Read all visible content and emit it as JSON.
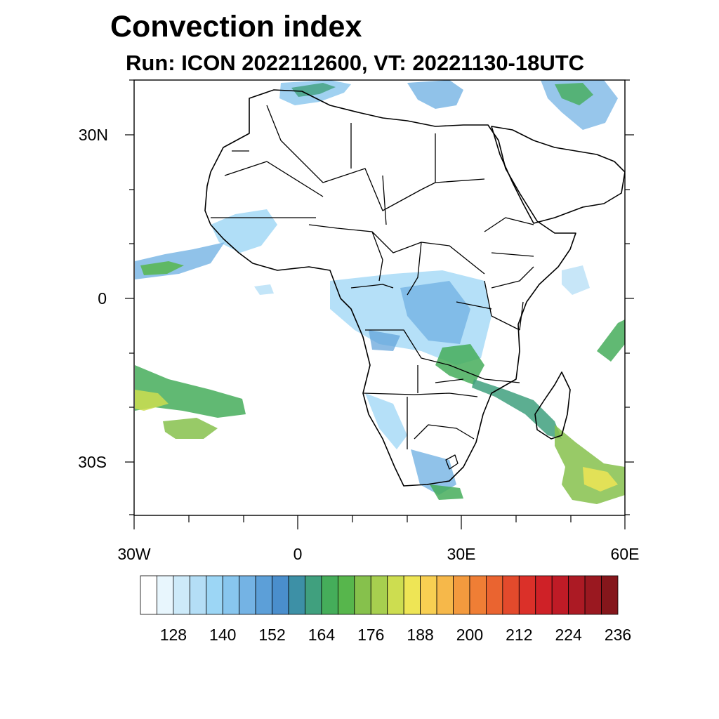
{
  "title": "Convection index",
  "subtitle": "Run: ICON 2022112600,  VT: 20221130-18UTC",
  "map": {
    "lon_range": [
      -30,
      60
    ],
    "lat_range": [
      -40,
      40
    ],
    "lat_labels": [
      "30N",
      "0",
      "30S"
    ],
    "lon_labels": [
      "30W",
      "0",
      "30E",
      "60E"
    ]
  },
  "colorbar": {
    "labels": [
      "128",
      "140",
      "152",
      "164",
      "176",
      "188",
      "200",
      "212",
      "224",
      "236"
    ],
    "colors": [
      "#ffffff",
      "#e8f6fd",
      "#cdeaf9",
      "#b4def6",
      "#9cd6f5",
      "#88c6ee",
      "#74b3e4",
      "#5c9fd8",
      "#4a8ecc",
      "#3d90a6",
      "#40a07e",
      "#45ad5a",
      "#57b64c",
      "#86c14c",
      "#a7cf4f",
      "#cddd50",
      "#eee555",
      "#f8cf52",
      "#f6b84a",
      "#f39a3e",
      "#ef7e35",
      "#ea6430",
      "#e34a2c",
      "#db3029",
      "#cf2127",
      "#bf1b26",
      "#ac1a24",
      "#9a1820",
      "#85161b"
    ]
  }
}
